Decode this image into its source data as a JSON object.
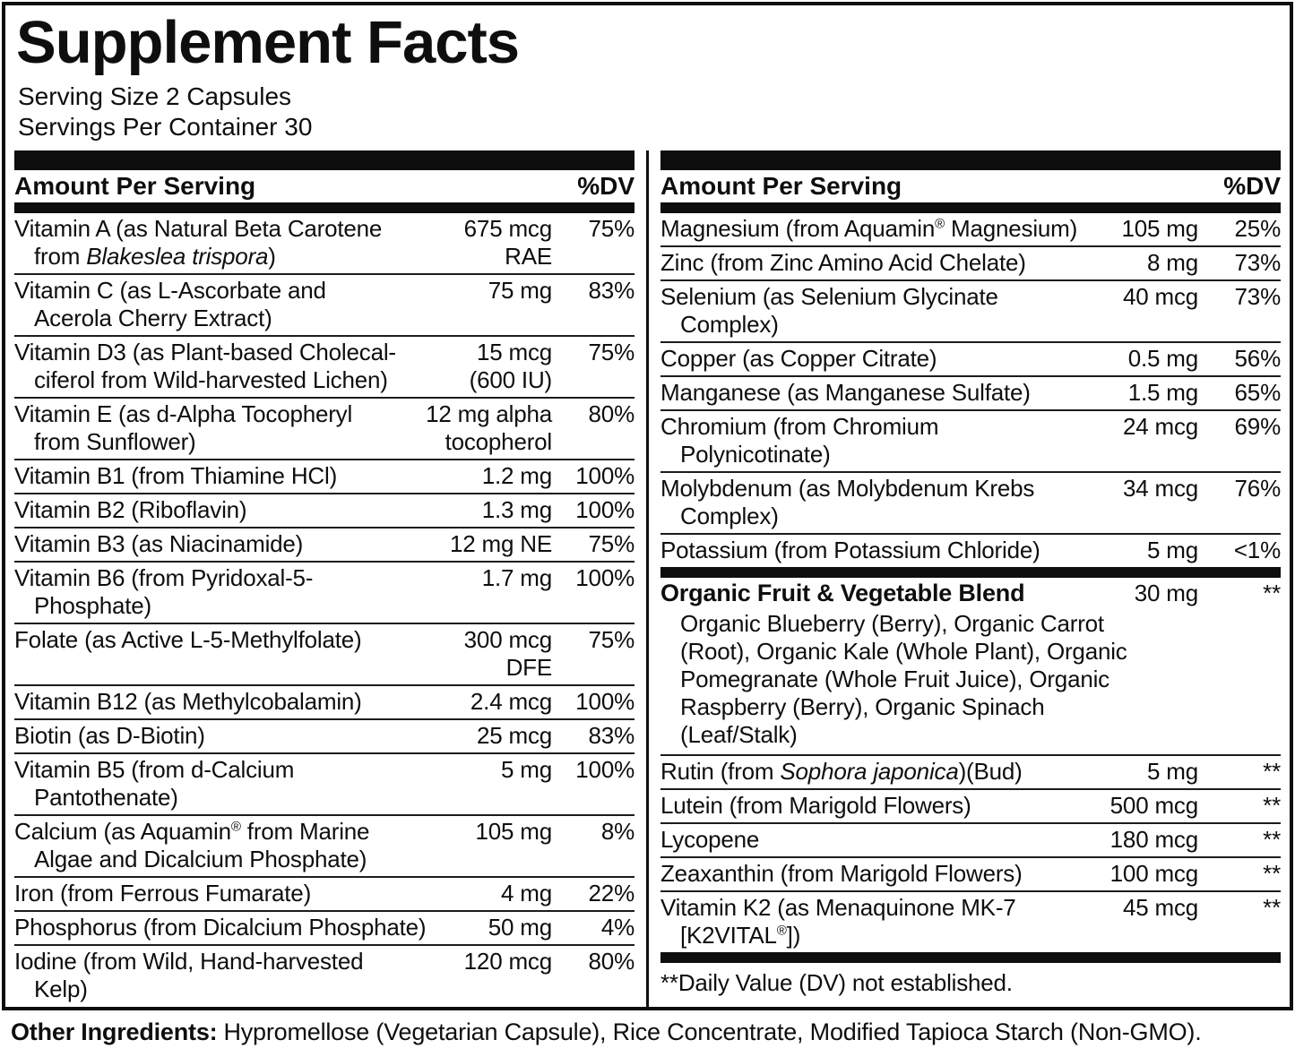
{
  "label": {
    "title": "Supplement Facts",
    "serving_size": "Serving Size 2 Capsules",
    "servings_per_container": "Servings Per Container 30",
    "column_header": {
      "amount": "Amount Per Serving",
      "dv": "%DV"
    },
    "columns": [
      {
        "rows": [
          {
            "name": "Vitamin A (as Natural Beta Carotene\nfrom <i>Blakeslea trispora</i>)",
            "amount": "675 mcg\nRAE",
            "dv": "75%"
          },
          {
            "name": "Vitamin C (as L-Ascorbate and\nAcerola Cherry Extract)",
            "amount": "75 mg",
            "dv": "83%"
          },
          {
            "name": "Vitamin D3 (as Plant-based Cholecal-\nciferol from Wild-harvested Lichen)",
            "amount": "15 mcg\n(600 IU)",
            "dv": "75%"
          },
          {
            "name": "Vitamin E (as d-Alpha Tocopheryl\nfrom Sunflower)",
            "amount": "12 mg alpha\ntocopherol",
            "dv": "80%"
          },
          {
            "name": "Vitamin B1 (from Thiamine HCl)",
            "amount": "1.2 mg",
            "dv": "100%"
          },
          {
            "name": "Vitamin B2 (Riboflavin)",
            "amount": "1.3 mg",
            "dv": "100%"
          },
          {
            "name": "Vitamin B3 (as Niacinamide)",
            "amount": "12 mg NE",
            "dv": "75%"
          },
          {
            "name": "Vitamin B6 (from Pyridoxal-5-\nPhosphate)",
            "amount": "1.7 mg",
            "dv": "100%"
          },
          {
            "name": "Folate (as Active L-5-Methylfolate)",
            "amount": "300 mcg\nDFE",
            "dv": "75%"
          },
          {
            "name": "Vitamin B12 (as Methylcobalamin)",
            "amount": "2.4 mcg",
            "dv": "100%"
          },
          {
            "name": "Biotin (as D-Biotin)",
            "amount": "25 mcg",
            "dv": "83%"
          },
          {
            "name": "Vitamin B5 (from d-Calcium\nPantothenate)",
            "amount": "5 mg",
            "dv": "100%"
          },
          {
            "name": "Calcium (as Aquamin<sup>®</sup> from Marine\nAlgae and Dicalcium Phosphate)",
            "amount": "105 mg",
            "dv": "8%"
          },
          {
            "name": "Iron (from Ferrous Fumarate)",
            "amount": "4 mg",
            "dv": "22%"
          },
          {
            "name": "Phosphorus (from Dicalcium Phosphate)",
            "amount": "50 mg",
            "dv": "4%"
          },
          {
            "name": "Iodine (from Wild, Hand-harvested\nKelp)",
            "amount": "120 mcg",
            "dv": "80%"
          }
        ]
      },
      {
        "rows": [
          {
            "name": "Magnesium (from Aquamin<sup>®</sup> Magnesium)",
            "amount": "105 mg",
            "dv": "25%"
          },
          {
            "name": "Zinc (from Zinc Amino Acid Chelate)",
            "amount": "8 mg",
            "dv": "73%"
          },
          {
            "name": "Selenium (as Selenium Glycinate\nComplex)",
            "amount": "40 mcg",
            "dv": "73%"
          },
          {
            "name": "Copper (as Copper Citrate)",
            "amount": "0.5 mg",
            "dv": "56%"
          },
          {
            "name": "Manganese (as Manganese Sulfate)",
            "amount": "1.5 mg",
            "dv": "65%"
          },
          {
            "name": "Chromium (from Chromium\nPolynicotinate)",
            "amount": "24 mcg",
            "dv": "69%"
          },
          {
            "name": "Molybdenum (as Molybdenum Krebs\nComplex)",
            "amount": "34 mcg",
            "dv": "76%"
          },
          {
            "name": "Potassium (from Potassium Chloride)",
            "amount": "5 mg",
            "dv": "<1%"
          },
          {
            "name": "Organic Fruit & Vegetable Blend",
            "amount": "30 mg",
            "dv": "**",
            "bold": true,
            "bar_before": true,
            "desc": "Organic Blueberry (Berry), Organic Carrot\n(Root), Organic Kale (Whole Plant), Organic\nPomegranate (Whole Fruit Juice), Organic\nRaspberry (Berry), Organic Spinach\n(Leaf/Stalk)"
          },
          {
            "name": "Rutin (from <i>Sophora japonica</i>)(Bud)",
            "amount": "5 mg",
            "dv": "**"
          },
          {
            "name": "Lutein (from Marigold Flowers)",
            "amount": "500 mcg",
            "dv": "**"
          },
          {
            "name": "Lycopene",
            "amount": "180 mcg",
            "dv": "**"
          },
          {
            "name": "Zeaxanthin (from Marigold Flowers)",
            "amount": "100 mcg",
            "dv": "**"
          },
          {
            "name": "Vitamin K2 (as Menaquinone MK-7\n[K2VITAL<sup>®</sup>])",
            "amount": "45 mcg",
            "dv": "**"
          }
        ],
        "footnote": "**Daily Value (DV) not established."
      }
    ],
    "other_ingredients": {
      "label": "Other Ingredients:",
      "text": "Hypromellose (Vegetarian Capsule), Rice Concentrate, Modified Tapioca Starch (Non-GMO)."
    }
  }
}
